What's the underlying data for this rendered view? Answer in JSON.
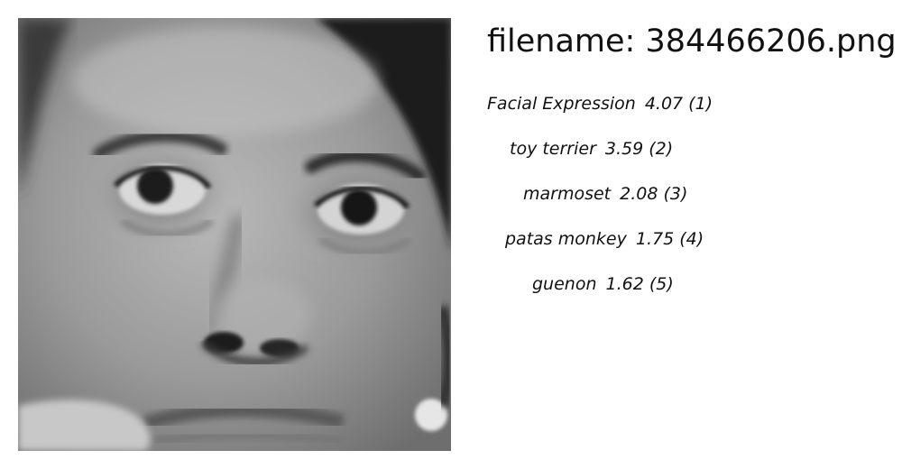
{
  "header": {
    "filename_text": "filename: 384466206.png"
  },
  "image": {
    "description_icon": "face-photo"
  },
  "predictions": [
    {
      "label": "Facial Expression",
      "score": "4.07",
      "rank": "(1)"
    },
    {
      "label": "toy terrier",
      "score": "3.59",
      "rank": "(2)"
    },
    {
      "label": "marmoset",
      "score": "2.08",
      "rank": "(3)"
    },
    {
      "label": "patas monkey",
      "score": "1.75",
      "rank": "(4)"
    },
    {
      "label": "guenon",
      "score": "1.62",
      "rank": "(5)"
    }
  ]
}
